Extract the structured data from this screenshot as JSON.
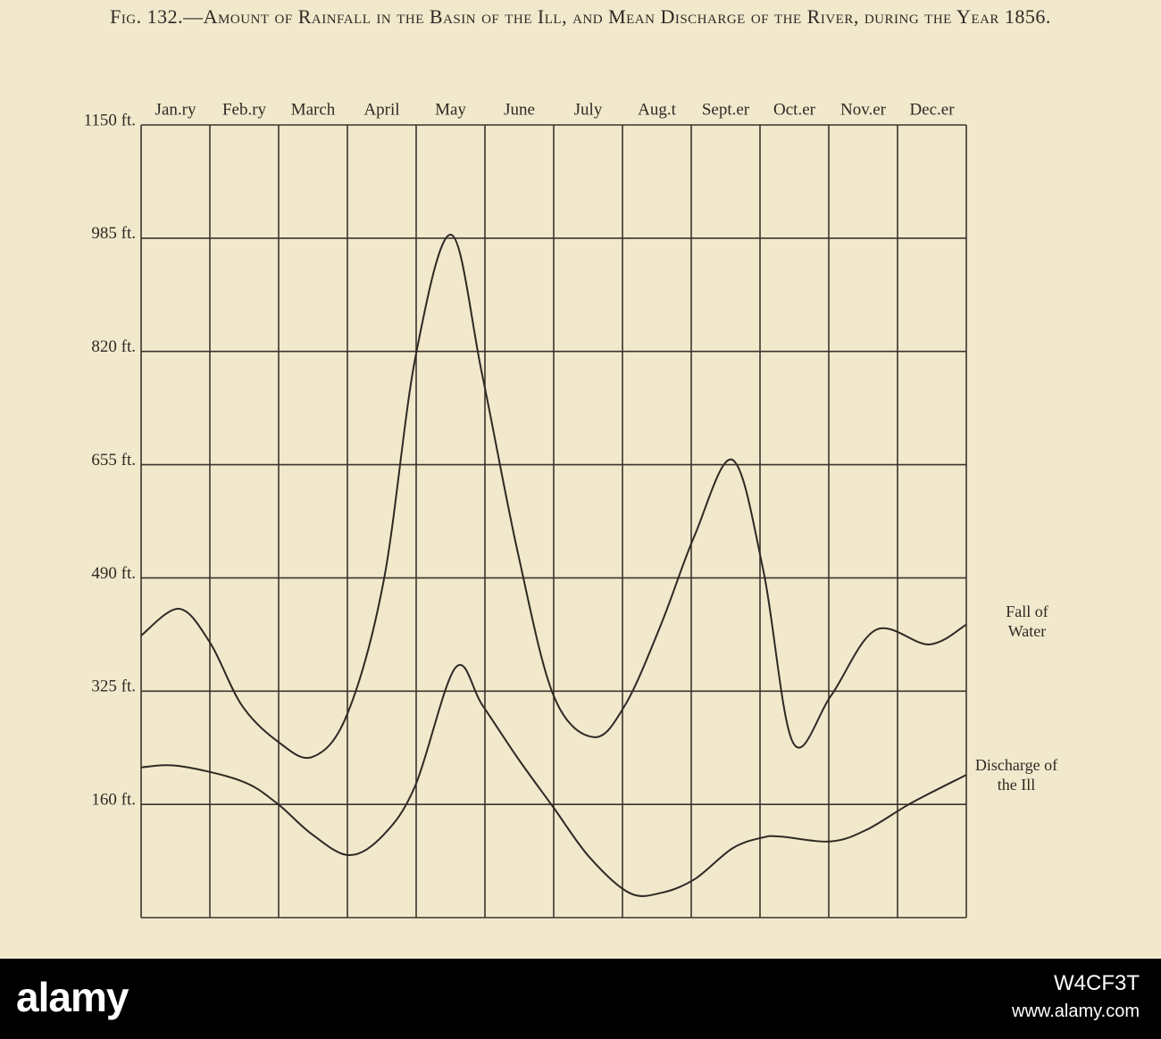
{
  "chart_data": {
    "type": "line",
    "title": "Fig. 132.—Amount of Rainfall in the Basin of the Ill, and Mean Discharge of the River, during the Year 1856.",
    "categories": [
      "Jan.ry",
      "Feb.ry",
      "March",
      "April",
      "May",
      "June",
      "July",
      "Aug.t",
      "Sept.er",
      "Oct.er",
      "Nov.er",
      "Dec.er"
    ],
    "xlim": [
      0,
      12
    ],
    "ylim": [
      -5,
      1150
    ],
    "yticks": [
      {
        "value": 160,
        "label": "160 ft."
      },
      {
        "value": 325,
        "label": "325 ft."
      },
      {
        "value": 490,
        "label": "490 ft."
      },
      {
        "value": 655,
        "label": "655 ft."
      },
      {
        "value": 820,
        "label": "820 ft."
      },
      {
        "value": 985,
        "label": "985 ft."
      },
      {
        "value": 1150,
        "label": "1150 ft."
      }
    ],
    "grid": true,
    "series": [
      {
        "name": "Fall of Water",
        "color": "#2e2a24",
        "x": [
          0,
          0.55,
          1.0,
          1.46,
          1.97,
          2.49,
          3.0,
          3.53,
          3.99,
          4.51,
          4.96,
          5.48,
          6.0,
          6.58,
          7.04,
          7.56,
          8.05,
          8.6,
          9.05,
          9.48,
          10.03,
          10.68,
          11.46,
          12.0
        ],
        "values": [
          406,
          445,
          396,
          305,
          253,
          229,
          292,
          487,
          812,
          990,
          786,
          526,
          318,
          258,
          305,
          422,
          552,
          662,
          500,
          250,
          318,
          414,
          393,
          422
        ]
      },
      {
        "name": "Discharge of the Ill",
        "color": "#2e2a24",
        "x": [
          0,
          0.55,
          1.46,
          1.97,
          2.49,
          3.03,
          3.53,
          3.99,
          4.57,
          4.96,
          5.48,
          6.0,
          6.52,
          7.1,
          7.56,
          8.05,
          8.6,
          9.05,
          9.31,
          10.03,
          10.55,
          11.2,
          12.0
        ],
        "values": [
          214,
          216,
          194,
          162,
          116,
          86,
          116,
          188,
          359,
          305,
          227,
          155,
          83,
          31,
          31,
          51,
          96,
          112,
          113,
          106,
          123,
          162,
          203
        ]
      }
    ]
  },
  "footer": {
    "logo": "alamy",
    "image_id": "W4CF3T",
    "url": "www.alamy.com"
  }
}
